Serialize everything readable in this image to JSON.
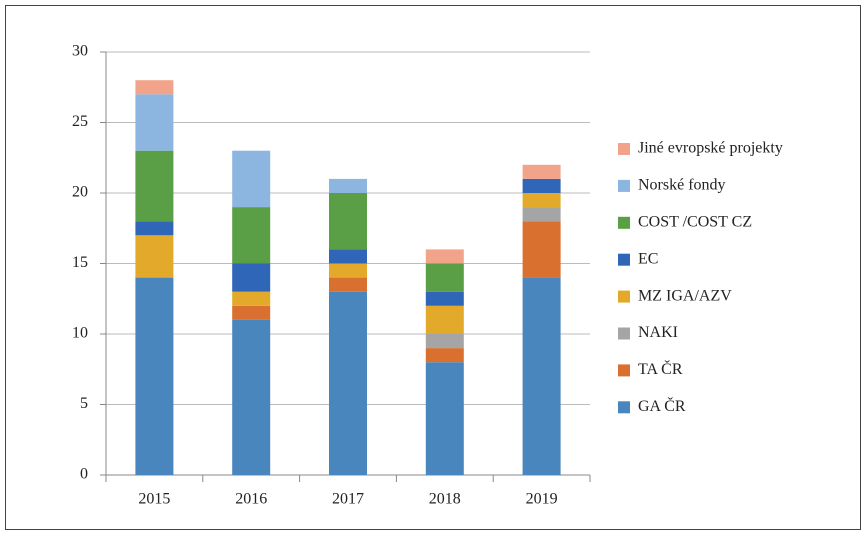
{
  "chart_data": {
    "type": "bar",
    "stacked": true,
    "categories": [
      "2015",
      "2016",
      "2017",
      "2018",
      "2019"
    ],
    "series": [
      {
        "name": "GA ČR",
        "color": "#4a86be",
        "values": [
          14,
          11,
          13,
          8,
          14
        ]
      },
      {
        "name": "TA ČR",
        "color": "#d9702f",
        "values": [
          0,
          1,
          1,
          1,
          4
        ]
      },
      {
        "name": "NAKI",
        "color": "#a5a5a5",
        "values": [
          0,
          0,
          0,
          1,
          1
        ]
      },
      {
        "name": "MZ IGA/AZV",
        "color": "#e3a92a",
        "values": [
          3,
          1,
          1,
          2,
          1
        ]
      },
      {
        "name": "EC",
        "color": "#2f66b8",
        "values": [
          1,
          2,
          1,
          1,
          1
        ]
      },
      {
        "name": "COST /COST CZ",
        "color": "#5a9e46",
        "values": [
          5,
          4,
          4,
          2,
          0
        ]
      },
      {
        "name": "Norské fondy",
        "color": "#8cb5df",
        "values": [
          4,
          4,
          1,
          0,
          0
        ]
      },
      {
        "name": "Jiné evropské projekty",
        "color": "#f2a48a",
        "values": [
          1,
          0,
          0,
          1,
          1
        ]
      }
    ],
    "ylim": [
      0,
      30
    ],
    "yticks": [
      0,
      5,
      10,
      15,
      20,
      25,
      30
    ],
    "grid": true,
    "legend": "right"
  }
}
